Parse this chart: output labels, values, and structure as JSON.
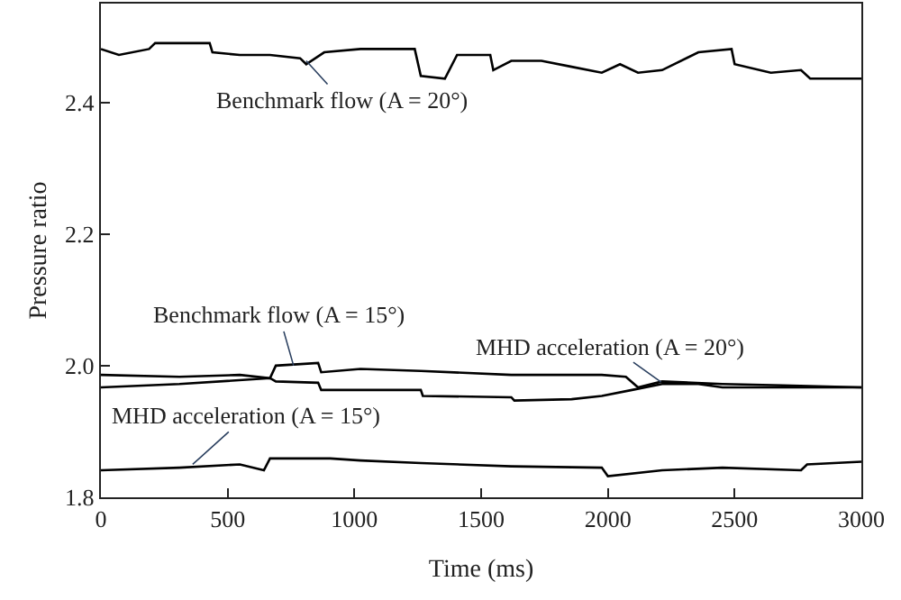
{
  "chart_data": {
    "type": "line",
    "xlabel": "Time (ms)",
    "ylabel": "Pressure ratio",
    "xlim": [
      0,
      3000
    ],
    "xticks": [
      0,
      500,
      1000,
      1500,
      2000,
      2500,
      3000
    ],
    "ylim": [
      1.8,
      2.55
    ],
    "yticks": [
      1.8,
      2.2,
      2.4,
      {
        "value": 2.0,
        "label": "2.0"
      }
    ],
    "marker": "none",
    "line_style": "solid",
    "series": [
      {
        "color": "#000000",
        "x": [
          0,
          71,
          190,
          214,
          429,
          440,
          548,
          667,
          786,
          810,
          881,
          1024,
          1238,
          1262,
          1357,
          1405,
          1536,
          1548,
          1619,
          1738,
          1857,
          1976,
          2048,
          2119,
          2214,
          2357,
          2488,
          2500,
          2643,
          2762,
          2798,
          3000
        ],
        "values": [
          2.481,
          2.472,
          2.481,
          2.49,
          2.49,
          2.476,
          2.472,
          2.472,
          2.467,
          2.458,
          2.476,
          2.481,
          2.481,
          2.44,
          2.436,
          2.472,
          2.472,
          2.449,
          2.463,
          2.463,
          2.454,
          2.445,
          2.458,
          2.445,
          2.449,
          2.476,
          2.481,
          2.458,
          2.445,
          2.449,
          2.436,
          2.436
        ]
      },
      {
        "color": "#000000",
        "x": [
          0,
          310,
          548,
          667,
          690,
          857,
          869,
          1024,
          1262,
          1619,
          1976,
          2071,
          2119,
          2214,
          2452,
          2690,
          3000
        ],
        "values": [
          1.986,
          1.983,
          1.986,
          1.981,
          2.0,
          2.004,
          1.99,
          1.995,
          1.992,
          1.986,
          1.986,
          1.983,
          1.967,
          1.976,
          1.972,
          1.97,
          1.967
        ]
      },
      {
        "color": "#000000",
        "x": [
          0,
          310,
          667,
          690,
          857,
          869,
          1262,
          1270,
          1619,
          1631,
          1857,
          1976,
          2095,
          2214,
          2357,
          2452,
          3000
        ],
        "values": [
          1.967,
          1.972,
          1.981,
          1.976,
          1.974,
          1.963,
          1.963,
          1.954,
          1.952,
          1.947,
          1.949,
          1.954,
          1.963,
          1.972,
          1.972,
          1.967,
          1.967
        ]
      },
      {
        "color": "#000000",
        "x": [
          0,
          310,
          548,
          643,
          667,
          905,
          1024,
          1262,
          1619,
          1976,
          2000,
          2214,
          2452,
          2762,
          2786,
          3000
        ],
        "values": [
          1.841,
          1.845,
          1.85,
          1.841,
          1.859,
          1.859,
          1.856,
          1.852,
          1.847,
          1.845,
          1.832,
          1.841,
          1.845,
          1.841,
          1.85,
          1.854
        ]
      }
    ],
    "annotations": [
      {
        "text": "Benchmark flow (A = 20°)",
        "x": 810,
        "y": 2.463
      },
      {
        "text": "Benchmark flow (A = 15°)",
        "x": 760,
        "y": 2.0
      },
      {
        "text": "MHD acceleration (A = 20°)",
        "x": 2210,
        "y": 1.975
      },
      {
        "text": "MHD acceleration (A = 15°)",
        "x": 362,
        "y": 1.85
      }
    ]
  }
}
